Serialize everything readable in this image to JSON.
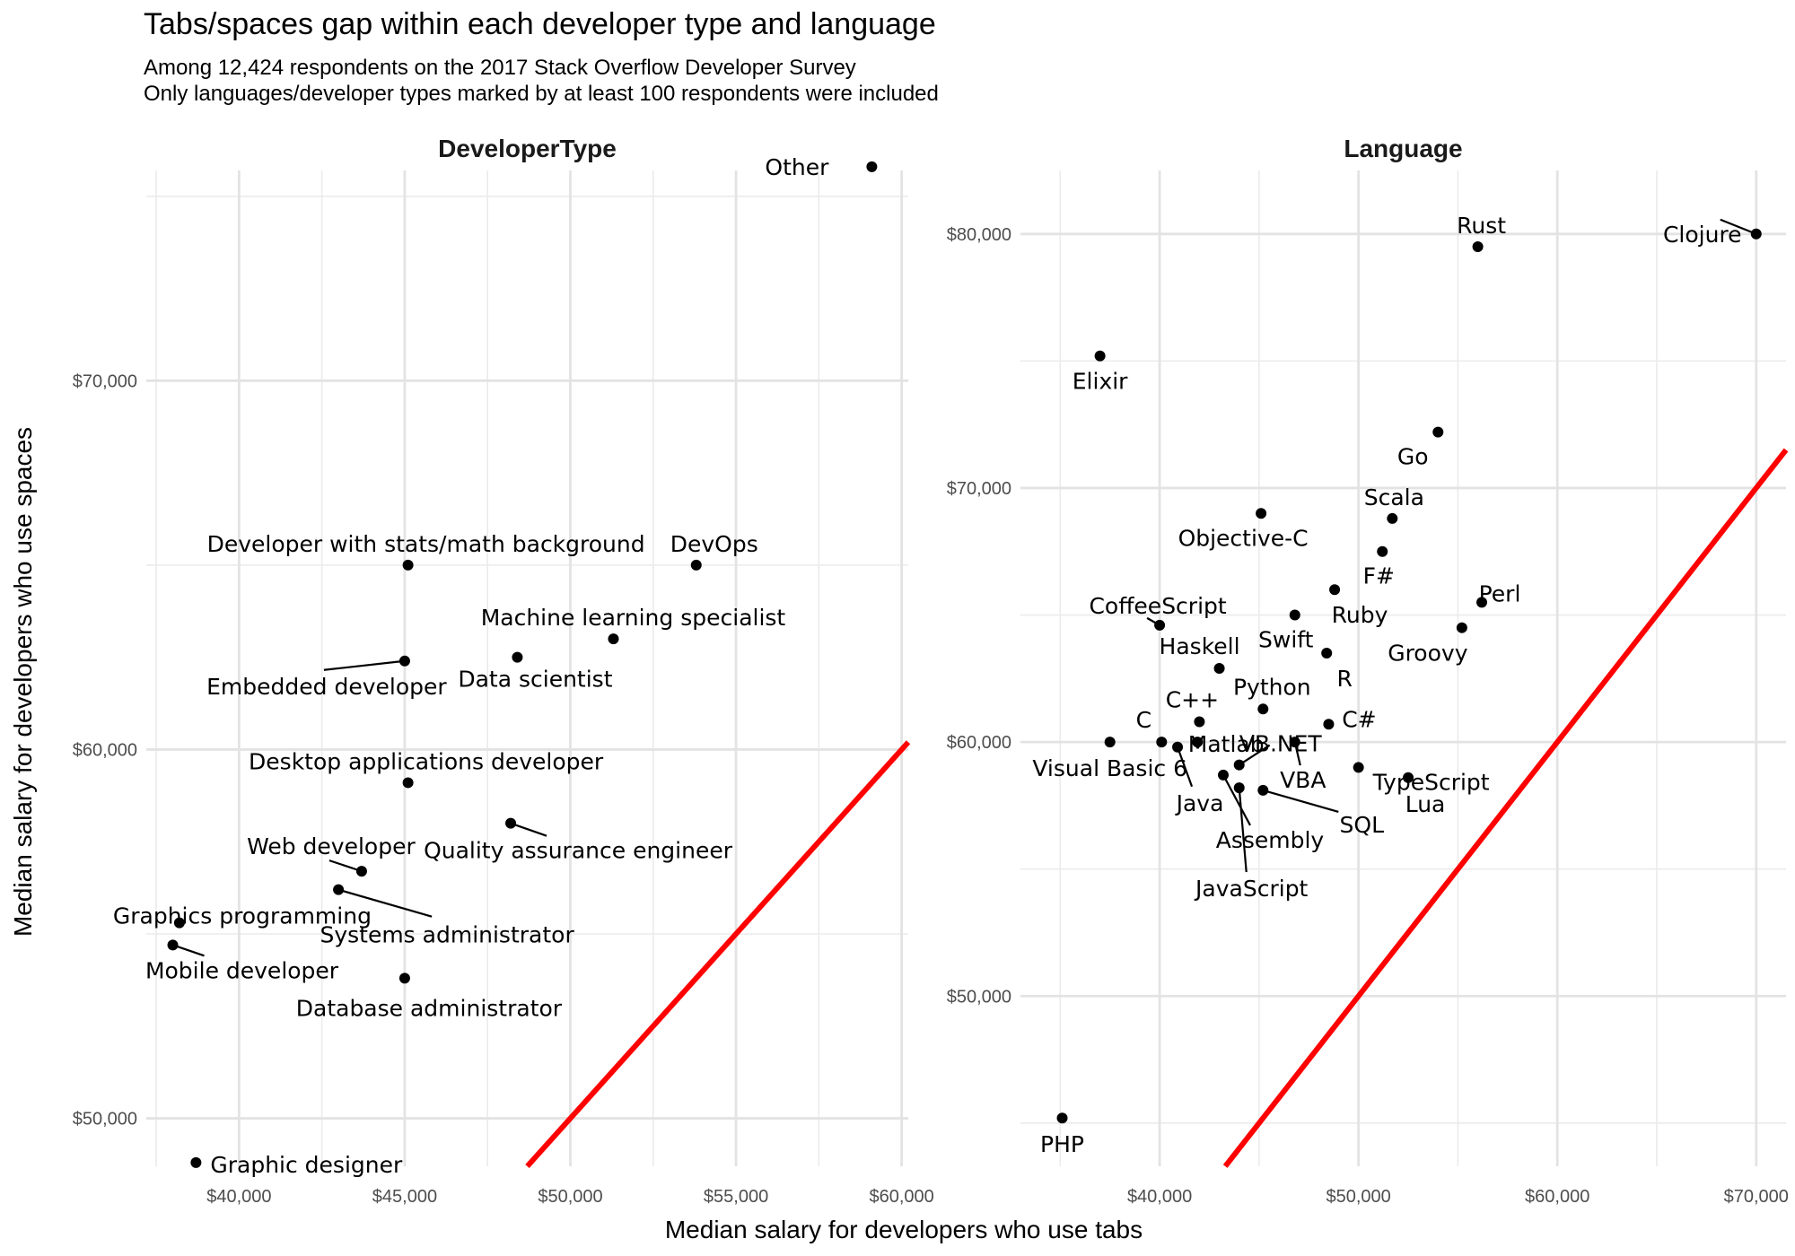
{
  "title": "Tabs/spaces gap within each developer type and language",
  "subtitle_lines": [
    "Among 12,424 respondents on the 2017 Stack Overflow Developer Survey",
    "Only languages/developer types marked by at least 100 respondents were included"
  ],
  "chart_data": {
    "type": "scatter",
    "xlabel": "Median salary for developers who use tabs",
    "ylabel": "Median salary for developers who use spaces",
    "reference_line": {
      "slope": 1,
      "intercept": 0,
      "color": "#ff0000"
    },
    "grid": true,
    "panels": [
      {
        "strip": "DeveloperType",
        "xlim": [
          37200,
          60200
        ],
        "ylim": [
          48700,
          75700
        ],
        "x_ticks": [
          40000,
          45000,
          50000,
          55000,
          60000
        ],
        "x_tick_labels": [
          "$40,000",
          "$45,000",
          "$50,000",
          "$55,000",
          "$60,000"
        ],
        "y_ticks": [
          50000,
          60000,
          70000
        ],
        "y_tick_labels": [
          "$50,000",
          "$60,000",
          "$70,000"
        ],
        "points": [
          {
            "label": "Other",
            "x": 59100,
            "y": 75800
          },
          {
            "label": "Developer with stats/math background",
            "x": 45100,
            "y": 65000
          },
          {
            "label": "DevOps",
            "x": 53800,
            "y": 65000
          },
          {
            "label": "Machine learning specialist",
            "x": 51300,
            "y": 63000
          },
          {
            "label": "Embedded developer",
            "x": 45000,
            "y": 62400
          },
          {
            "label": "Data scientist",
            "x": 48400,
            "y": 62500
          },
          {
            "label": "Desktop applications developer",
            "x": 45100,
            "y": 59100
          },
          {
            "label": "Quality assurance engineer",
            "x": 48200,
            "y": 58000
          },
          {
            "label": "Web developer",
            "x": 43700,
            "y": 56700
          },
          {
            "label": "Systems administrator",
            "x": 43000,
            "y": 56200
          },
          {
            "label": "Graphics programming",
            "x": 38200,
            "y": 55300
          },
          {
            "label": "Mobile developer",
            "x": 38000,
            "y": 54700
          },
          {
            "label": "Database administrator",
            "x": 45000,
            "y": 53800
          },
          {
            "label": "Graphic designer",
            "x": 38700,
            "y": 48800
          }
        ]
      },
      {
        "strip": "Language",
        "xlim": [
          33000,
          71500
        ],
        "ylim": [
          43300,
          82500
        ],
        "x_ticks": [
          40000,
          50000,
          60000,
          70000
        ],
        "x_tick_labels": [
          "$40,000",
          "$50,000",
          "$60,000",
          "$70,000"
        ],
        "y_ticks": [
          50000,
          60000,
          70000,
          80000
        ],
        "y_tick_labels": [
          "$50,000",
          "$60,000",
          "$70,000",
          "$80,000"
        ],
        "points": [
          {
            "label": "Rust",
            "x": 56000,
            "y": 79500
          },
          {
            "label": "Clojure",
            "x": 70000,
            "y": 80000
          },
          {
            "label": "Elixir",
            "x": 37000,
            "y": 75200
          },
          {
            "label": "Go",
            "x": 54000,
            "y": 72200
          },
          {
            "label": "Objective-C",
            "x": 45100,
            "y": 69000
          },
          {
            "label": "Scala",
            "x": 51700,
            "y": 68800
          },
          {
            "label": "F#",
            "x": 51200,
            "y": 67500
          },
          {
            "label": "Ruby",
            "x": 48800,
            "y": 66000
          },
          {
            "label": "Perl",
            "x": 56200,
            "y": 65500
          },
          {
            "label": "Swift",
            "x": 46800,
            "y": 65000
          },
          {
            "label": "CoffeeScript",
            "x": 40000,
            "y": 64600
          },
          {
            "label": "Groovy",
            "x": 55200,
            "y": 64500
          },
          {
            "label": "R",
            "x": 48400,
            "y": 63500
          },
          {
            "label": "Haskell",
            "x": 43000,
            "y": 62900
          },
          {
            "label": "Python",
            "x": 45200,
            "y": 61300
          },
          {
            "label": "C++",
            "x": 42000,
            "y": 60800
          },
          {
            "label": "C#",
            "x": 48500,
            "y": 60700
          },
          {
            "label": "C",
            "x": 40100,
            "y": 60000
          },
          {
            "label": "Visual Basic 6",
            "x": 37500,
            "y": 60000
          },
          {
            "label": "Matlab",
            "x": 41900,
            "y": 60000
          },
          {
            "label": "VB.NET",
            "x": 44000,
            "y": 59100
          },
          {
            "label": "VBA",
            "x": 46800,
            "y": 60000
          },
          {
            "label": "TypeScript",
            "x": 50000,
            "y": 59000
          },
          {
            "label": "Java",
            "x": 40900,
            "y": 59800
          },
          {
            "label": "Lua",
            "x": 52500,
            "y": 58600
          },
          {
            "label": "Assembly",
            "x": 43200,
            "y": 58700
          },
          {
            "label": "SQL",
            "x": 45200,
            "y": 58100
          },
          {
            "label": "JavaScript",
            "x": 44000,
            "y": 58200
          },
          {
            "label": "PHP",
            "x": 35100,
            "y": 45200
          }
        ]
      }
    ]
  }
}
